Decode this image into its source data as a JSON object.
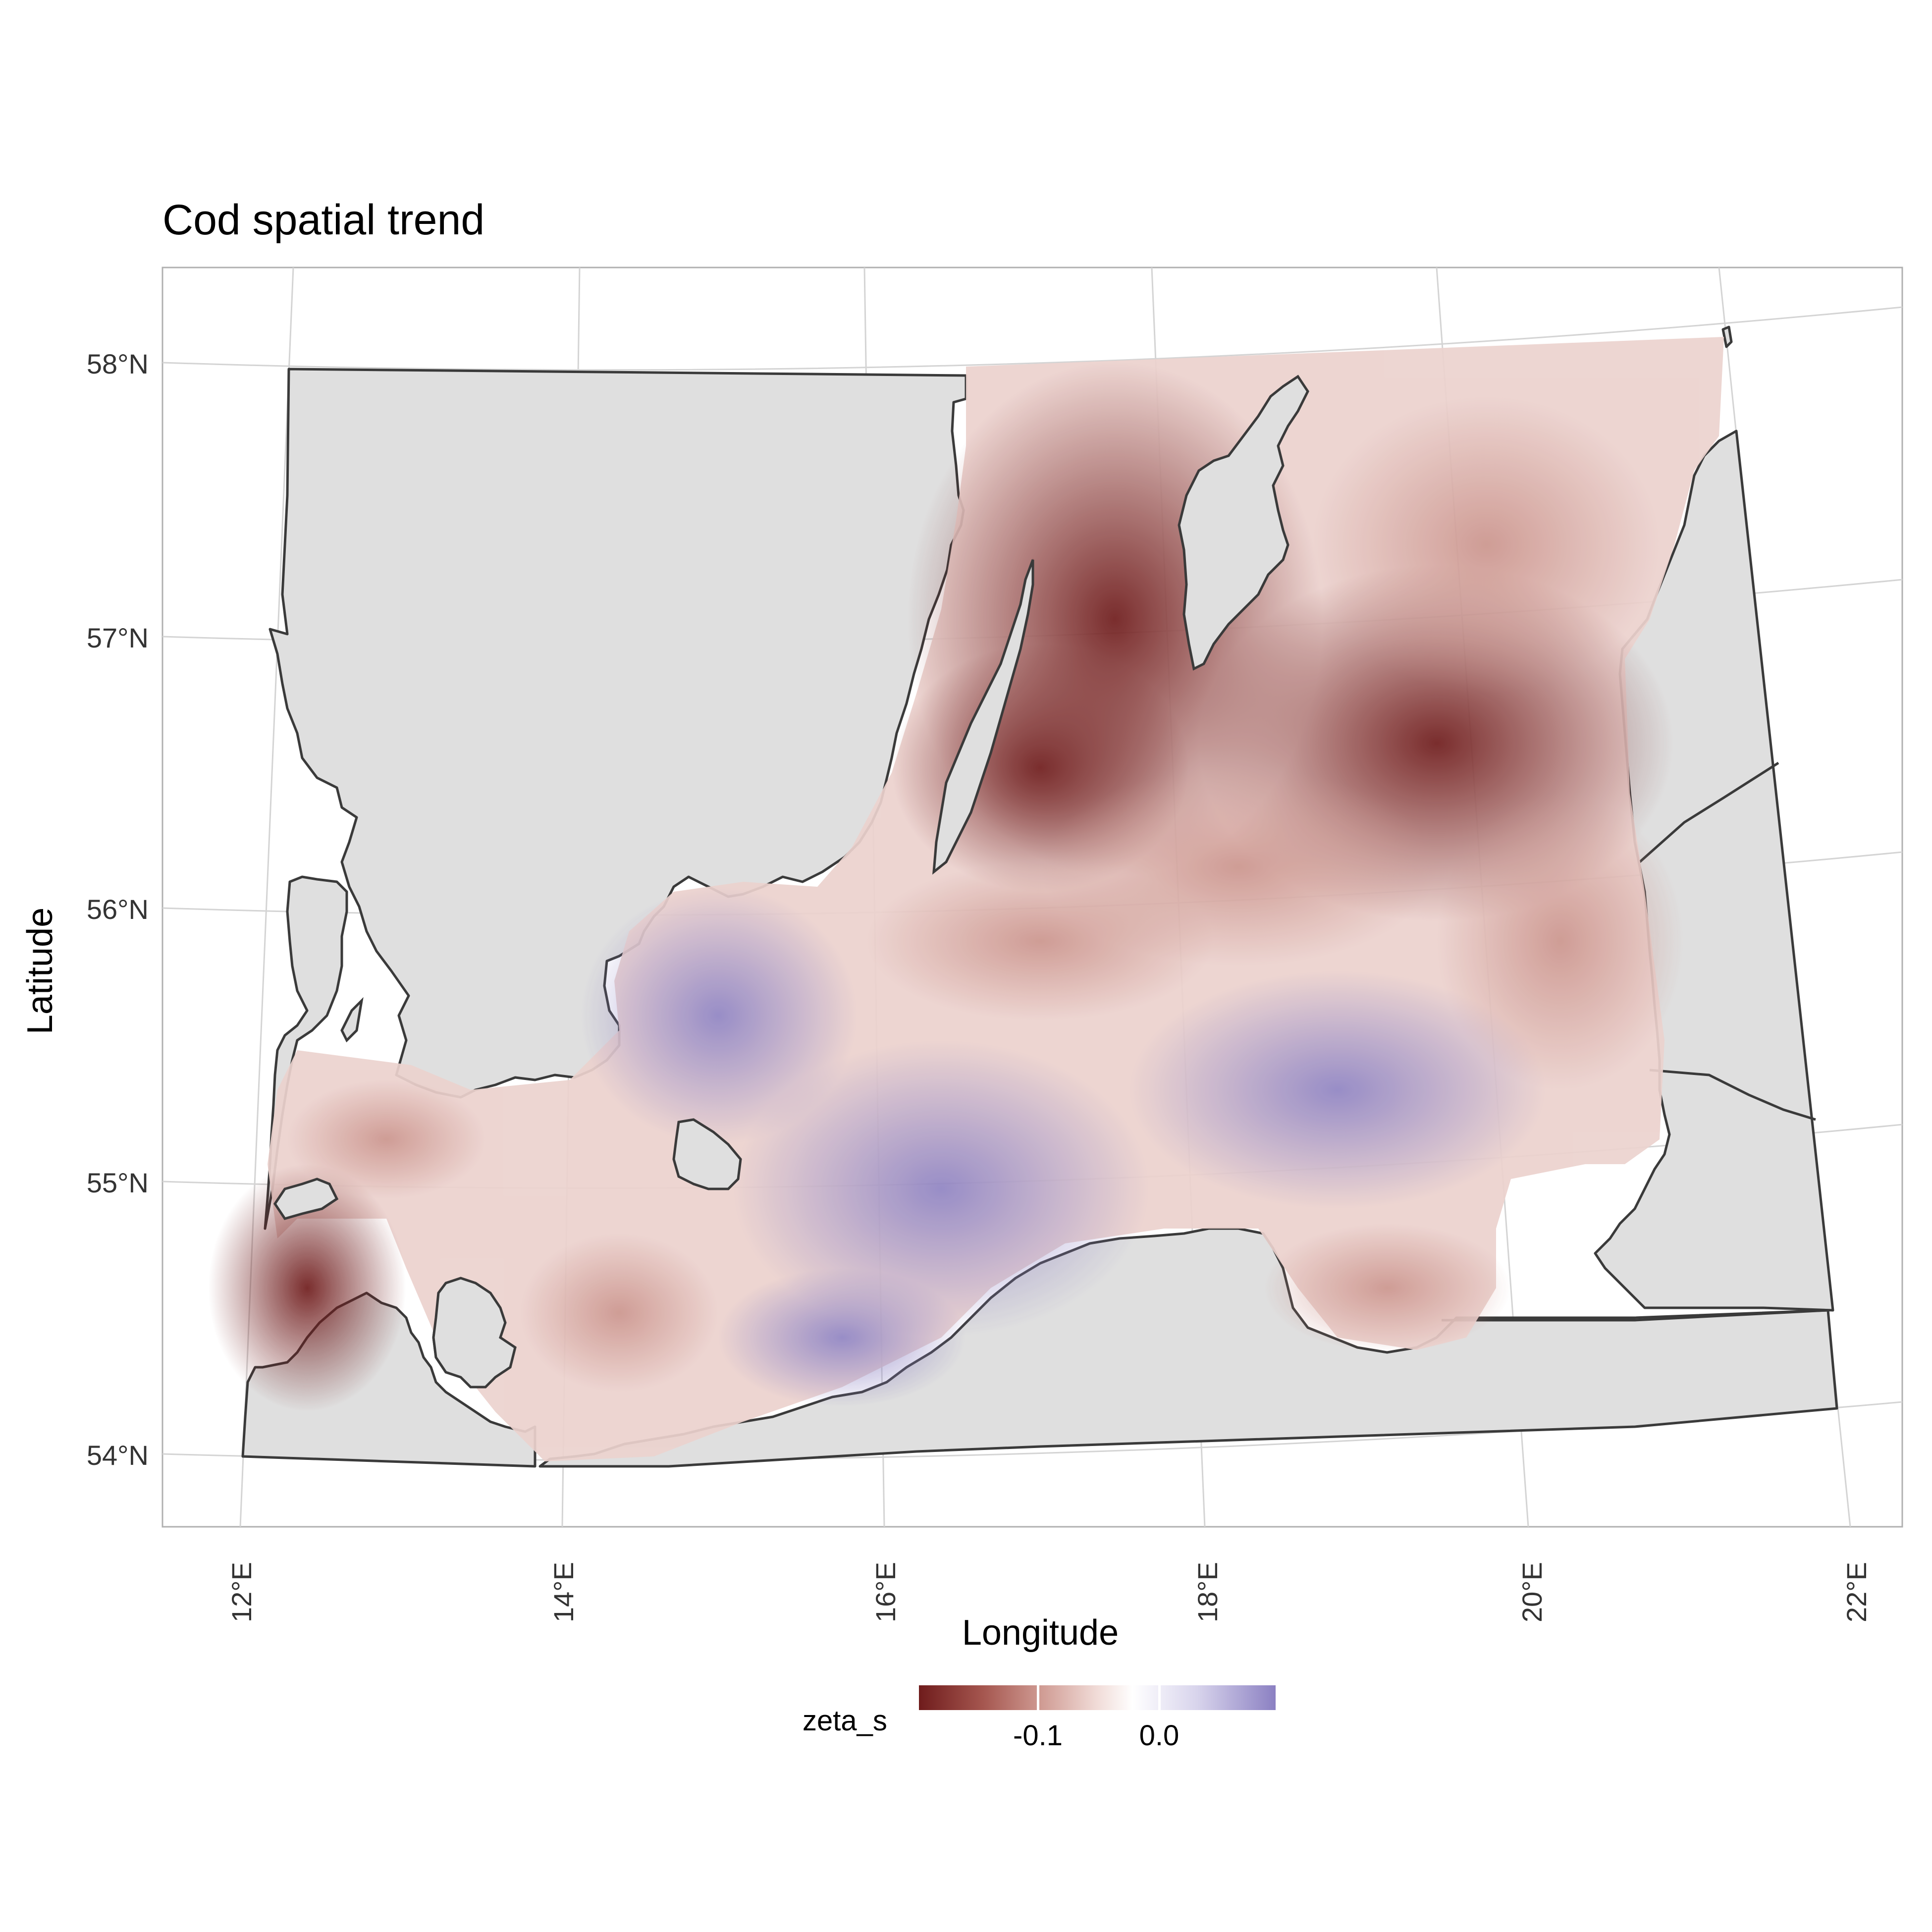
{
  "title": "Cod spatial trend",
  "axes": {
    "x_title": "Longitude",
    "y_title": "Latitude",
    "lat_ticks": [
      "58°N",
      "57°N",
      "56°N",
      "55°N",
      "54°N"
    ],
    "lon_ticks": [
      "12°E",
      "14°E",
      "16°E",
      "18°E",
      "20°E",
      "22°E"
    ],
    "grid": true
  },
  "legend": {
    "title": "zeta_s",
    "labels": [
      "-0.1",
      "0.0"
    ],
    "placement": "bottom",
    "colors": {
      "low": "#6f1c1c",
      "mid": "#ffffff",
      "high": "#8b80c2"
    }
  },
  "map": {
    "land_color": "#dfdfdf",
    "outline_color": "#3a3a3a",
    "panel_border_color": "#b0b0b0",
    "field_description_colors": {
      "strong_negative": "#7a1f1f",
      "near_zero": "#ffffff",
      "positive": "#9a90cc"
    }
  }
}
